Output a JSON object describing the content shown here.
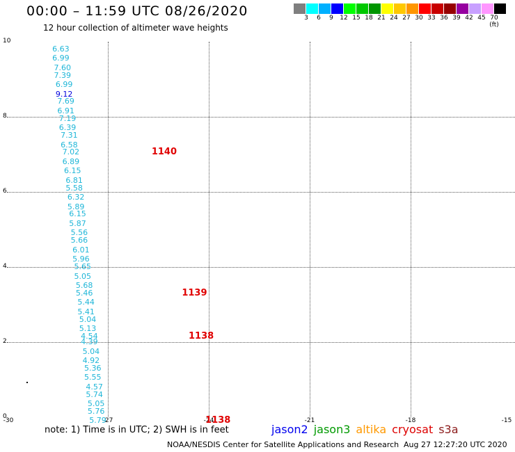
{
  "header": {
    "title": "00:00 – 11:59 UTC 08/26/2020",
    "subtitle": "12 hour collection of altimeter wave heights"
  },
  "legend": {
    "colors": [
      "#7f7f7f",
      "#00ffff",
      "#00b0ff",
      "#0000ff",
      "#00ff00",
      "#00c800",
      "#009600",
      "#ffff00",
      "#ffc800",
      "#ff9600",
      "#ff0000",
      "#c80000",
      "#960000",
      "#9600a0",
      "#c8a0ff",
      "#ff96ff",
      "#000000"
    ],
    "labels": [
      "3",
      "6",
      "9",
      "12",
      "15",
      "18",
      "21",
      "24",
      "27",
      "30",
      "33",
      "36",
      "39",
      "42",
      "45",
      "70 (ft)"
    ]
  },
  "axes": {
    "x_ticks": [
      "-30",
      "-27",
      "-24",
      "-21",
      "-18",
      "-15"
    ],
    "y_ticks": [
      "0",
      "2",
      "4",
      "6",
      "8",
      "10"
    ]
  },
  "wave_heights": [
    {
      "lon": -28.4,
      "lat": 9.8,
      "v": "6.63"
    },
    {
      "lon": -28.4,
      "lat": 9.55,
      "v": "6.99"
    },
    {
      "lon": -28.35,
      "lat": 9.3,
      "v": "7.60"
    },
    {
      "lon": -28.35,
      "lat": 9.1,
      "v": "7.39"
    },
    {
      "lon": -28.3,
      "lat": 8.85,
      "v": "6.99"
    },
    {
      "lon": -28.3,
      "lat": 8.6,
      "v": "9.12",
      "hi": true
    },
    {
      "lon": -28.25,
      "lat": 8.4,
      "v": "7.69"
    },
    {
      "lon": -28.25,
      "lat": 8.15,
      "v": "6.91"
    },
    {
      "lon": -28.2,
      "lat": 7.95,
      "v": "7.19"
    },
    {
      "lon": -28.2,
      "lat": 7.7,
      "v": "6.39"
    },
    {
      "lon": -28.15,
      "lat": 7.5,
      "v": "7.31"
    },
    {
      "lon": -28.15,
      "lat": 7.25,
      "v": "6.58"
    },
    {
      "lon": -28.1,
      "lat": 7.05,
      "v": "7.02"
    },
    {
      "lon": -28.1,
      "lat": 6.8,
      "v": "6.89"
    },
    {
      "lon": -28.05,
      "lat": 6.55,
      "v": "6.15"
    },
    {
      "lon": -28.0,
      "lat": 6.3,
      "v": "6.81"
    },
    {
      "lon": -28.0,
      "lat": 6.1,
      "v": "5.58"
    },
    {
      "lon": -27.95,
      "lat": 5.85,
      "v": "6.32"
    },
    {
      "lon": -27.95,
      "lat": 5.6,
      "v": "5.89"
    },
    {
      "lon": -27.9,
      "lat": 5.4,
      "v": "6.15"
    },
    {
      "lon": -27.9,
      "lat": 5.15,
      "v": "5.87"
    },
    {
      "lon": -27.85,
      "lat": 4.9,
      "v": "5.56"
    },
    {
      "lon": -27.85,
      "lat": 4.7,
      "v": "5.66"
    },
    {
      "lon": -27.8,
      "lat": 4.45,
      "v": "6.01"
    },
    {
      "lon": -27.8,
      "lat": 4.2,
      "v": "5.96"
    },
    {
      "lon": -27.75,
      "lat": 4.0,
      "v": "5.65"
    },
    {
      "lon": -27.75,
      "lat": 3.75,
      "v": "5.05"
    },
    {
      "lon": -27.7,
      "lat": 3.5,
      "v": "5.68"
    },
    {
      "lon": -27.7,
      "lat": 3.3,
      "v": "5.46"
    },
    {
      "lon": -27.65,
      "lat": 3.05,
      "v": "5.44"
    },
    {
      "lon": -27.65,
      "lat": 2.8,
      "v": "5.41"
    },
    {
      "lon": -27.6,
      "lat": 2.6,
      "v": "5.04"
    },
    {
      "lon": -27.6,
      "lat": 2.35,
      "v": "5.13"
    },
    {
      "lon": -27.55,
      "lat": 2.15,
      "v": "4.54"
    },
    {
      "lon": -27.55,
      "lat": 2.0,
      "v": "4.39"
    },
    {
      "lon": -27.5,
      "lat": 1.75,
      "v": "5.04"
    },
    {
      "lon": -27.5,
      "lat": 1.5,
      "v": "4.92"
    },
    {
      "lon": -27.45,
      "lat": 1.3,
      "v": "5.36"
    },
    {
      "lon": -27.45,
      "lat": 1.05,
      "v": "5.55"
    },
    {
      "lon": -27.4,
      "lat": 0.8,
      "v": "4.57"
    },
    {
      "lon": -27.4,
      "lat": 0.6,
      "v": "5.74"
    },
    {
      "lon": -27.35,
      "lat": 0.35,
      "v": "5.05"
    },
    {
      "lon": -27.35,
      "lat": 0.15,
      "v": "5.76"
    },
    {
      "lon": -27.3,
      "lat": -0.1,
      "v": "5.79"
    }
  ],
  "pass_labels": [
    {
      "lon": -25.7,
      "lat": 7.05,
      "v": "1140"
    },
    {
      "lon": -24.8,
      "lat": 3.3,
      "v": "1139"
    },
    {
      "lon": -24.6,
      "lat": 2.15,
      "v": "1138"
    },
    {
      "lon": -24.1,
      "lat": -0.1,
      "v": "1138"
    }
  ],
  "note": "note:  1) Time is in UTC;  2) SWH is in feet",
  "satellites": [
    {
      "name": "jason2",
      "color": "#0000ee"
    },
    {
      "name": "jason3",
      "color": "#009a00"
    },
    {
      "name": "altika",
      "color": "#ff9900"
    },
    {
      "name": "cryosat",
      "color": "#dd0000"
    },
    {
      "name": "s3a",
      "color": "#8b1a1a"
    }
  ],
  "footer": {
    "left": "NOAA/NESDIS Center for Satellite Applications and Research",
    "right": "Aug 27 12:27:20 UTC 2020"
  }
}
